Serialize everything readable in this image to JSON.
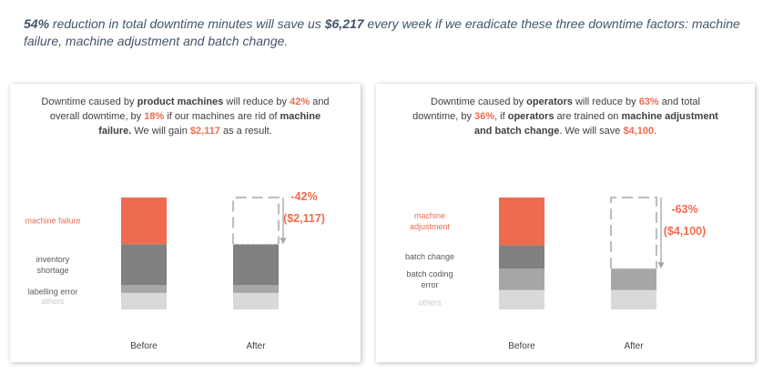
{
  "headline": {
    "pct": "54%",
    "pre": " reduction in total downtime minutes will save us ",
    "amount": "$6,217",
    "post": " every week if we eradicate these three downtime factors: machine failure, machine adjustment and batch change."
  },
  "colors": {
    "accent": "#ef6b4f",
    "dark_gray": "#808080",
    "mid_gray": "#a6a6a6",
    "light_gray": "#d9d9d9",
    "headline_text": "#44546a",
    "body_text": "#404040"
  },
  "left_panel": {
    "caption": {
      "t1": "Downtime caused by ",
      "b1": "product machines",
      "t2": " will reduce by ",
      "h1": "42%",
      "t3": " and overall downtime, by ",
      "h2": "18%",
      "t4": " if our machines are rid of ",
      "b2": "machine failure.",
      "t5": " We will gain ",
      "h3": "$2,117",
      "t6": " as a result."
    },
    "change_pct": "-42%",
    "change_amount": "($2,117)"
  },
  "right_panel": {
    "caption": {
      "t1": "Downtime caused by ",
      "b1": "operators",
      "t2": " will reduce by ",
      "h1": "63%",
      "t3": " and total downtime, by ",
      "h2": "36%",
      "t4": ", if ",
      "b2": "operators",
      "t5": " are trained on ",
      "b3": "machine adjustment and batch change",
      "t6": ". We will save ",
      "h3": "$4,100",
      "t7": "."
    },
    "change_pct": "-63%",
    "change_amount": "($4,100)"
  },
  "chart_data": [
    {
      "type": "bar",
      "stacked": true,
      "categories": [
        "Before",
        "After"
      ],
      "series": [
        {
          "name": "others",
          "values": [
            17,
            17
          ],
          "color": "#d9d9d9"
        },
        {
          "name": "labelling error",
          "values": [
            8,
            8
          ],
          "color": "#a6a6a6"
        },
        {
          "name": "inventory shortage",
          "values": [
            42,
            42
          ],
          "color": "#808080"
        },
        {
          "name": "machine failure",
          "values": [
            48,
            0
          ],
          "color": "#ef6b4f"
        }
      ],
      "removed_segment": "machine failure",
      "ylim": [
        0,
        115
      ],
      "grid": false,
      "legend": "left"
    },
    {
      "type": "bar",
      "stacked": true,
      "categories": [
        "Before",
        "After"
      ],
      "series": [
        {
          "name": "others",
          "values": [
            20,
            20
          ],
          "color": "#d9d9d9"
        },
        {
          "name": "batch coding error",
          "values": [
            22,
            22
          ],
          "color": "#a6a6a6"
        },
        {
          "name": "batch change",
          "values": [
            24,
            0
          ],
          "color": "#808080"
        },
        {
          "name": "machine adjustment",
          "values": [
            49,
            0
          ],
          "color": "#ef6b4f"
        }
      ],
      "removed_segment": "machine adjustment",
      "ylim": [
        0,
        115
      ],
      "grid": false,
      "legend": "left"
    }
  ]
}
